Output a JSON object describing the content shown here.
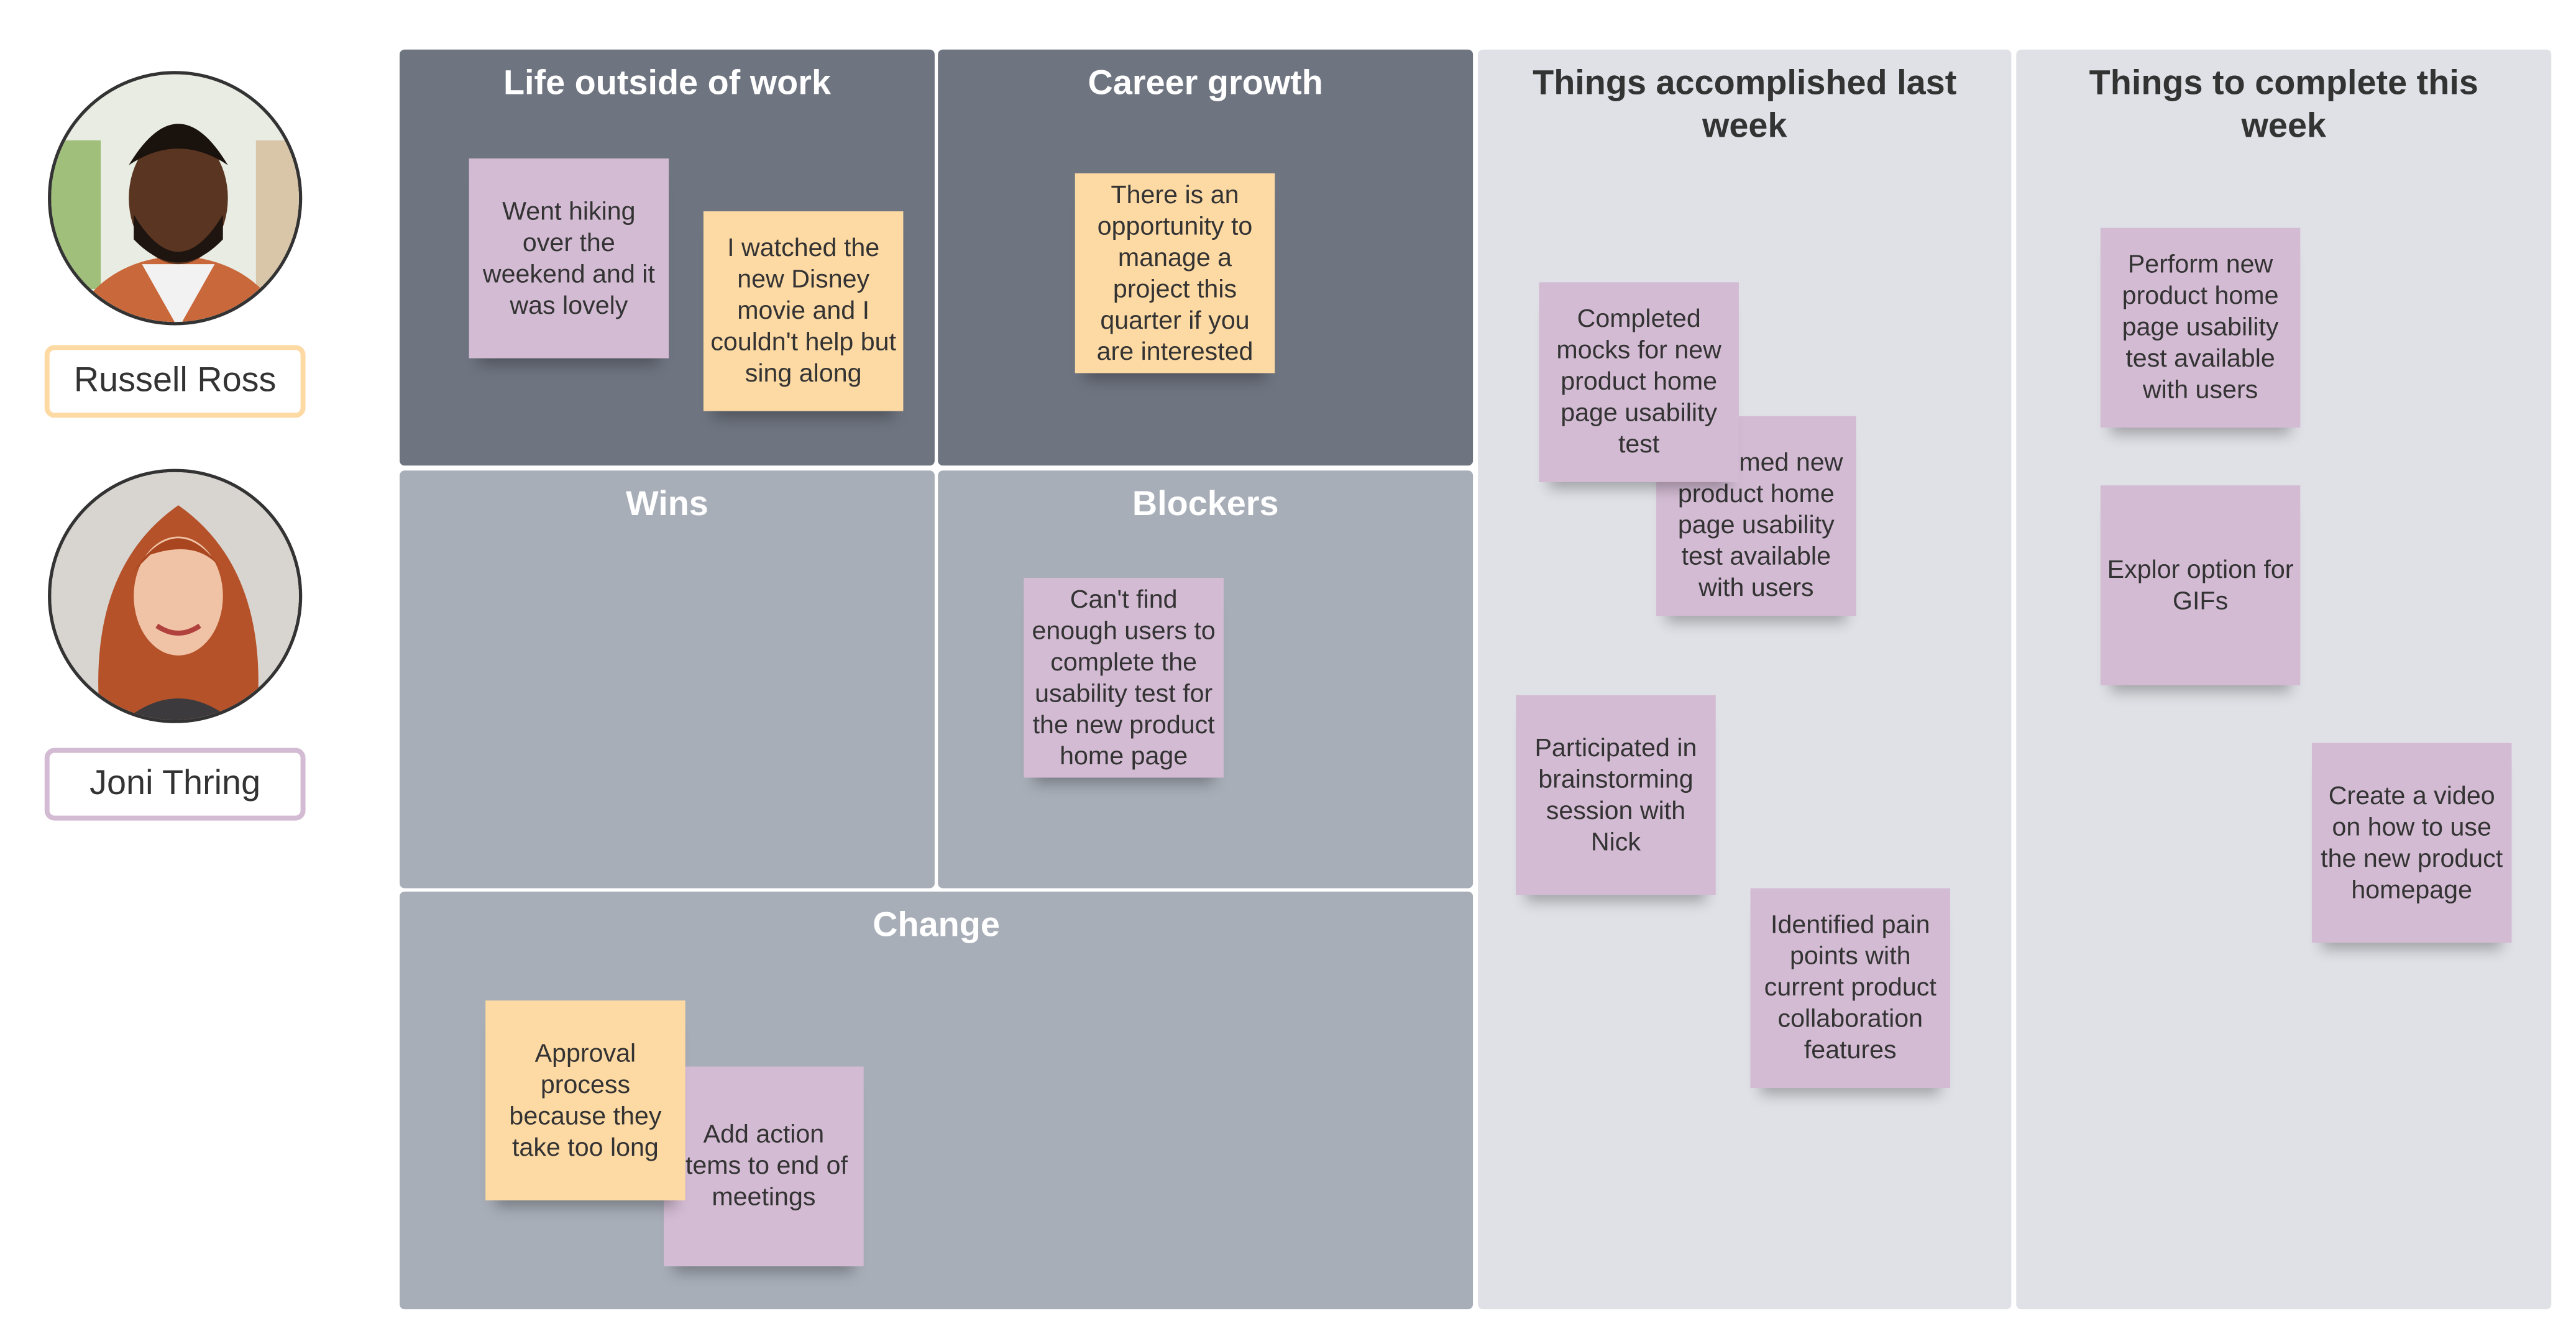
{
  "people": [
    {
      "name": "Russell Ross",
      "color": "#fdd9a3"
    },
    {
      "name": "Joni Thring",
      "color": "#d3bbd3"
    }
  ],
  "panels": {
    "life": "Life outside of work",
    "career": "Career growth",
    "wins": "Wins",
    "blockers": "Blockers",
    "change": "Change",
    "accomplished": "Things accomplished last week",
    "complete": "Things to complete this week"
  },
  "notes": {
    "hiking": "Went hiking over the weekend and it was lovely",
    "disney": "I watched the new Disney movie and I couldn't help but sing along",
    "opportunity": "There is an opportunity to manage a project this quarter if you are interested",
    "cant_find": "Can't find enough users to complete the usability test for the new product home page",
    "add_action": "Add action items to end of meetings",
    "approval": "Approval process because they take too long",
    "performed": "Performed new product home page usability test available with users",
    "mocks": "Completed mocks for new product home page usability test",
    "brainstorm": "Participated in brainstorming session with Nick",
    "pain_points": "Identified pain points with current product collaboration features",
    "perform_new": "Perform new product home page usability test available with users",
    "gifs": "Explor option for GIFs",
    "video": "Create a video on how to use the new product homepage"
  },
  "colors": {
    "purple": "#d3bbd3",
    "orange": "#fdd9a3",
    "dark_panel": "#6e7480",
    "mid_panel": "#a8aeb8",
    "light_panel": "#dfe1e6"
  }
}
